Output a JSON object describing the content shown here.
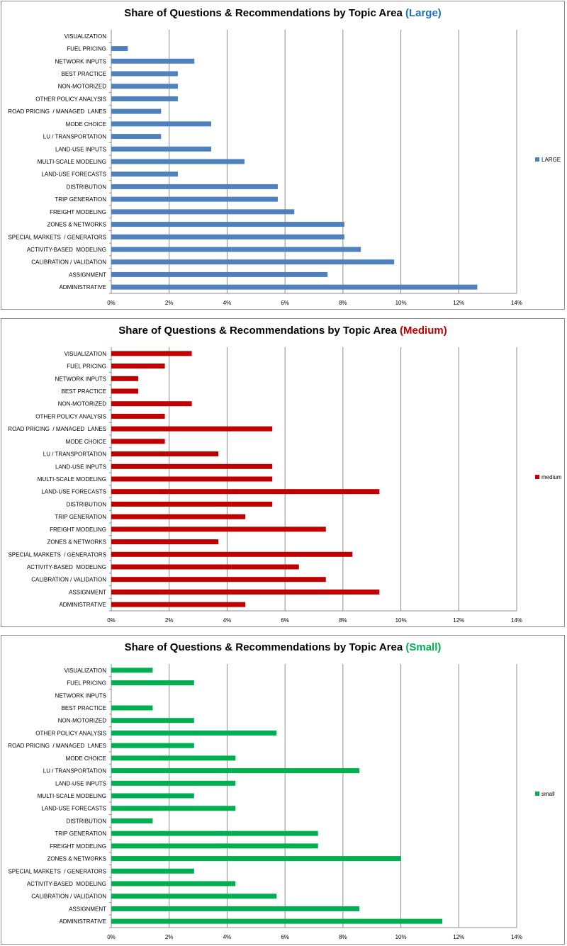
{
  "chart_data": [
    {
      "type": "bar",
      "orientation": "horizontal",
      "title": "Share of Questions & Recommendations by Topic Area",
      "title_suffix": "(Large)",
      "title_suffix_color": "#1f6fbf",
      "categories": [
        "ADMINISTRATIVE",
        "ASSIGNMENT",
        "CALIBRATION / VALIDATION",
        "ACTIVITY-BASED  MODELING",
        "SPECIAL MARKETS  / GENERATORS",
        "ZONES & NETWORKS",
        "FREIGHT MODELING",
        "TRIP GENERATION",
        "DISTRIBUTION",
        "LAND-USE FORECASTS",
        "MULTI-SCALE MODELING",
        "LAND-USE INPUTS",
        "LU / TRANSPORTATION",
        "MODE CHOICE",
        "ROAD PRICING  / MANAGED  LANES",
        "OTHER POLICY ANALYSIS",
        "NON-MOTORIZED",
        "BEST PRACTICE",
        "NETWORK INPUTS",
        "FUEL PRICING",
        "VISUALIZATION"
      ],
      "series": [
        {
          "name": "LARGE",
          "color": "#4f81bd",
          "values": [
            12.64,
            7.47,
            9.77,
            8.62,
            8.05,
            8.05,
            6.32,
            5.75,
            5.75,
            2.3,
            4.6,
            3.45,
            1.72,
            3.45,
            1.72,
            2.3,
            2.3,
            2.3,
            2.87,
            0.57,
            0
          ]
        }
      ],
      "xlim": [
        0,
        14
      ],
      "x_ticks": [
        "0%",
        "2%",
        "4%",
        "6%",
        "8%",
        "10%",
        "12%",
        "14%"
      ],
      "grid": "vertical",
      "legend": "right"
    },
    {
      "type": "bar",
      "orientation": "horizontal",
      "title": "Share of Questions & Recommendations by Topic Area",
      "title_suffix": "(Medium)",
      "title_suffix_color": "#c00000",
      "categories": [
        "ADMINISTRATIVE",
        "ASSIGNMENT",
        "CALIBRATION / VALIDATION",
        "ACTIVITY-BASED  MODELING",
        "SPECIAL MARKETS  / GENERATORS",
        "ZONES & NETWORKS",
        "FREIGHT MODELING",
        "TRIP GENERATION",
        "DISTRIBUTION",
        "LAND-USE FORECASTS",
        "MULTI-SCALE MODELING",
        "LAND-USE INPUTS",
        "LU / TRANSPORTATION",
        "MODE CHOICE",
        "ROAD PRICING  / MANAGED  LANES",
        "OTHER POLICY ANALYSIS",
        "NON-MOTORIZED",
        "BEST PRACTICE",
        "NETWORK INPUTS",
        "FUEL PRICING",
        "VISUALIZATION"
      ],
      "series": [
        {
          "name": "medium",
          "color": "#c00000",
          "values": [
            4.63,
            9.26,
            7.41,
            6.48,
            8.33,
            3.7,
            7.41,
            4.63,
            5.56,
            9.26,
            5.56,
            5.56,
            3.7,
            1.85,
            5.56,
            1.85,
            2.78,
            0.93,
            0.93,
            1.85,
            2.78
          ]
        }
      ],
      "xlim": [
        0,
        14
      ],
      "x_ticks": [
        "0%",
        "2%",
        "4%",
        "6%",
        "8%",
        "10%",
        "12%",
        "14%"
      ],
      "grid": "vertical",
      "legend": "right"
    },
    {
      "type": "bar",
      "orientation": "horizontal",
      "title": "Share of Questions & Recommendations by Topic Area",
      "title_suffix": "(Small)",
      "title_suffix_color": "#00b050",
      "categories": [
        "ADMINISTRATIVE",
        "ASSIGNMENT",
        "CALIBRATION / VALIDATION",
        "ACTIVITY-BASED  MODELING",
        "SPECIAL MARKETS  / GENERATORS",
        "ZONES & NETWORKS",
        "FREIGHT MODELING",
        "TRIP GENERATION",
        "DISTRIBUTION",
        "LAND-USE FORECASTS",
        "MULTI-SCALE MODELING",
        "LAND-USE INPUTS",
        "LU / TRANSPORTATION",
        "MODE CHOICE",
        "ROAD PRICING  / MANAGED  LANES",
        "OTHER POLICY ANALYSIS",
        "NON-MOTORIZED",
        "BEST PRACTICE",
        "NETWORK INPUTS",
        "FUEL PRICING",
        "VISUALIZATION"
      ],
      "series": [
        {
          "name": "small",
          "color": "#00b050",
          "values": [
            11.43,
            8.57,
            5.71,
            4.29,
            2.86,
            10.0,
            7.14,
            7.14,
            1.43,
            4.29,
            2.86,
            4.29,
            8.57,
            4.29,
            2.86,
            5.71,
            2.86,
            1.43,
            0,
            2.86,
            1.43
          ]
        }
      ],
      "xlim": [
        0,
        14
      ],
      "x_ticks": [
        "0%",
        "2%",
        "4%",
        "6%",
        "8%",
        "10%",
        "12%",
        "14%"
      ],
      "grid": "vertical",
      "legend": "right"
    }
  ]
}
